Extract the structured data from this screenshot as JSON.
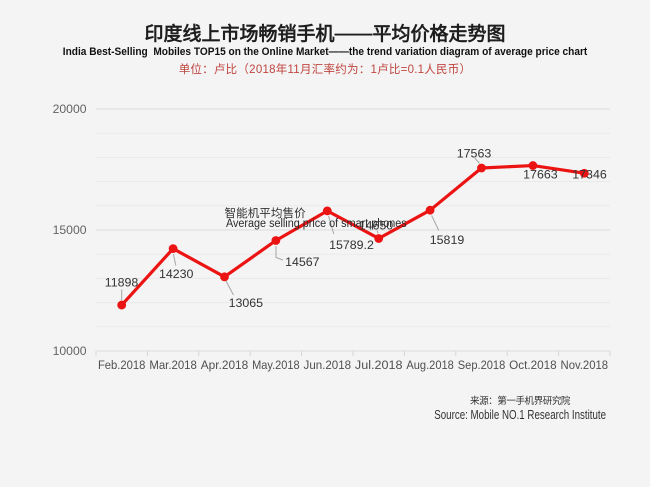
{
  "header": {
    "title": "印度线上市场畅销手机——平均价格走势图",
    "subtitle": "India Best-Selling  Mobiles TOP15 on the Online Market——the trend variation diagram of average price chart",
    "unit_note": "单位：卢比（2018年11月汇率约为：1卢比=0.1人民币）"
  },
  "chart_data": {
    "type": "line",
    "title": "印度线上市场畅销手机——平均价格走势图",
    "subtitle": "India Best-Selling  Mobiles TOP15 on the Online Market——the trend variation diagram of average price chart",
    "unit_note": "单位：卢比（2018年11月汇率约为：1卢比=0.1人民币）",
    "categories": [
      "Feb.2018",
      "Mar.2018",
      "Apr.2018",
      "May.2018",
      "Jun.2018",
      "Jul.2018",
      "Aug.2018",
      "Sep.2018",
      "Oct.2018",
      "Nov.2018"
    ],
    "series": [
      {
        "name_zh": "智能机平均售价",
        "name_en": "Average selling price of smart phones",
        "values": [
          11898,
          14230,
          13065,
          14567,
          15789.2,
          14650,
          15819,
          17563,
          17663,
          17346
        ],
        "value_labels": [
          "11898",
          "14230",
          "13065",
          "14567",
          "15789.2",
          "14650",
          "15819",
          "17563",
          "17663",
          "17346"
        ]
      }
    ],
    "xlabel": "",
    "ylabel": "",
    "ylim": [
      10000,
      20000
    ],
    "yticks": [
      10000,
      15000,
      20000
    ],
    "ytick_labels": [
      "10000",
      "15000",
      "20000"
    ],
    "minor_grid_step": 1000,
    "grid": true,
    "legend_position": "none",
    "colors": {
      "line": "#ec1313",
      "point": "#ec1313",
      "data_label": "#333333",
      "axis_label": "#4f4f4f",
      "ytick_label": "#636363",
      "grid_major": "#dcdcdc",
      "grid_minor": "#e9e9e9",
      "leader_line": "#a6a6a6",
      "tick": "#d6d6d6",
      "background": "#f4f4f4",
      "unit_note_red": "#c04540"
    }
  },
  "annotation": {
    "series_label_zh": "智能机平均售价",
    "series_label_en": "Average selling price of smart phones"
  },
  "source": {
    "zh": "来源：第一手机界研究院",
    "en": "Source: Mobile NO.1 Research Institute"
  }
}
